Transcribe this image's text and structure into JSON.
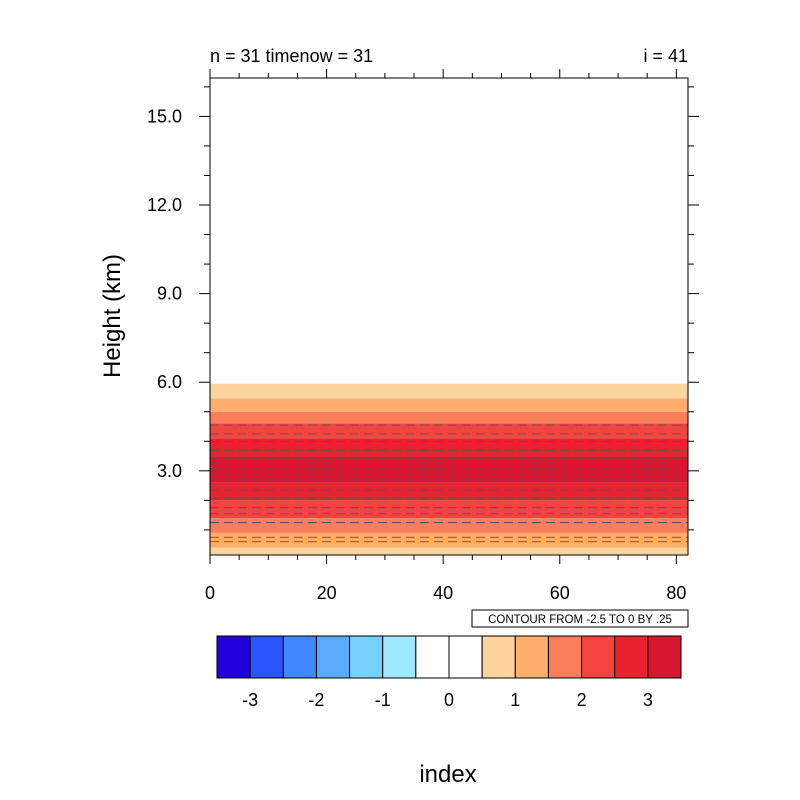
{
  "chart_data": {
    "type": "heatmap",
    "title_left": "n = 31 timenow = 31",
    "title_right": "i = 41",
    "xlabel": "",
    "ylabel": "Height (km)",
    "xlim": [
      0,
      82
    ],
    "ylim": [
      0.15,
      16.3
    ],
    "x_ticks": [
      0,
      20,
      40,
      60,
      80
    ],
    "x_tick_labels": [
      "0",
      "20",
      "40",
      "60",
      "80"
    ],
    "y_ticks": [
      3.0,
      6.0,
      9.0,
      12.0,
      15.0
    ],
    "y_tick_labels": [
      "3.0",
      "6.0",
      "9.0",
      "12.0",
      "15.0"
    ],
    "fill_bands": [
      {
        "y0": 0.15,
        "y1": 0.4,
        "color": "#fdd49e"
      },
      {
        "y0": 0.4,
        "y1": 0.9,
        "color": "#fdae6b"
      },
      {
        "y0": 0.9,
        "y1": 1.4,
        "color": "#fc7d5a"
      },
      {
        "y0": 1.4,
        "y1": 2.0,
        "color": "#f4443f"
      },
      {
        "y0": 2.0,
        "y1": 2.6,
        "color": "#e8232f"
      },
      {
        "y0": 2.6,
        "y1": 3.5,
        "color": "#d7172f"
      },
      {
        "y0": 3.5,
        "y1": 4.1,
        "color": "#e8232f"
      },
      {
        "y0": 4.1,
        "y1": 4.6,
        "color": "#f4443f"
      },
      {
        "y0": 4.6,
        "y1": 5.0,
        "color": "#fc7d5a"
      },
      {
        "y0": 5.0,
        "y1": 5.45,
        "color": "#fdae6b"
      },
      {
        "y0": 5.45,
        "y1": 5.95,
        "color": "#fdd49e"
      }
    ],
    "dashed_contour_heights": [
      0.6,
      0.75,
      1.25,
      1.55,
      1.75,
      2.05,
      2.35,
      2.65,
      2.9,
      3.1,
      3.4,
      3.7,
      4.0,
      4.25,
      4.55
    ],
    "contour_info": "CONTOUR FROM -2.5 TO 0 BY .25",
    "colorbar": {
      "colors": [
        "#2200dd",
        "#2b55ff",
        "#3f88ff",
        "#5aaaff",
        "#74d0ff",
        "#9ee8ff",
        "#ffffff",
        "#ffffff",
        "#fdd49e",
        "#fdae6b",
        "#fc7d5a",
        "#f4443f",
        "#e8232f",
        "#d7172f"
      ],
      "labels": [
        "-3",
        "-2",
        "-1",
        "0",
        "1",
        "2",
        "3"
      ],
      "title": "index"
    }
  }
}
